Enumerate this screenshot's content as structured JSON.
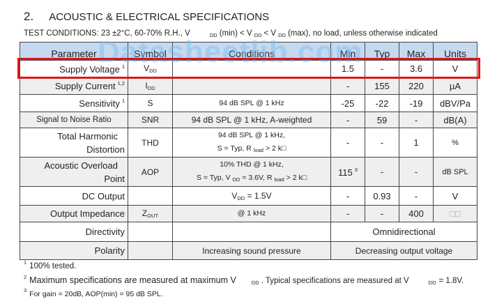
{
  "section": {
    "number": "2.",
    "title": "ACOUSTIC & ELECTRICAL SPECIFICATIONS"
  },
  "test_conditions": {
    "prefix": "TEST CONDITIONS: 23 ±2°C, 60-70% R.H., V",
    "p1": "(min) < V",
    "p2": "< V",
    "p3": "(max), no load, unless otherwise indicated",
    "sub": "DD"
  },
  "watermark": "Datasheetlib.com",
  "header": [
    "Parameter",
    "Symbol",
    "Conditions",
    "Min",
    "Typ",
    "Max",
    "Units"
  ],
  "rows": [
    {
      "parameter": "Supply Voltage",
      "note": "1",
      "symbol": "V",
      "symbol_sub": "DD",
      "conditions": "",
      "min": "1.5",
      "typ": "-",
      "max": "3.6",
      "units": "V"
    },
    {
      "parameter": "Supply Current",
      "note": "1,2",
      "symbol": "I",
      "symbol_sub": "DD",
      "conditions": "",
      "min": "-",
      "typ": "155",
      "max": "220",
      "units": "µA"
    },
    {
      "parameter": "Sensitivity",
      "note": "1",
      "symbol": "S",
      "conditions": "94 dB SPL @ 1 kHz",
      "min": "-25",
      "typ": "-22",
      "max": "-19",
      "units": "dBV/Pa"
    },
    {
      "parameter": "Signal to Noise Ratio",
      "symbol": "SNR",
      "conditions": "94 dB SPL @ 1 kHz, A-weighted",
      "min": "-",
      "typ": "59",
      "max": "-",
      "units": "dB(A)"
    },
    {
      "parameter_l1": "Total Harmonic",
      "parameter_l2": "Distortion",
      "symbol": "THD",
      "cond_l1": "94 dB SPL @ 1 kHz,",
      "cond_l2a": "S = Typ, R",
      "cond_l2sub": "load",
      "cond_l2b": "> 2 k□",
      "min": "-",
      "typ": "-",
      "max": "1",
      "units": "%"
    },
    {
      "parameter_l1": "Acoustic Overload",
      "parameter_l2": "Point",
      "symbol": "AOP",
      "cond_l1": "10% THD @ 1 kHz,",
      "cond_l2a": "S = Typ, V",
      "cond_l2sub1": "DD",
      "cond_l2b": "= 3.6V, R",
      "cond_l2sub2": "load",
      "cond_l2c": "> 2 k□",
      "min": "115",
      "min_note": "3",
      "typ": "-",
      "max": "-",
      "units": "dB SPL"
    },
    {
      "parameter": "DC Output",
      "symbol": "",
      "cond_a": "V",
      "cond_sub": "DD",
      "cond_b": " = 1.5V",
      "min": "-",
      "typ": "0.93",
      "max": "-",
      "units": "V"
    },
    {
      "parameter": "Output Impedance",
      "symbol": "Z",
      "symbol_sub": "OUT",
      "conditions": "@ 1 kHz",
      "min": "-",
      "typ": "-",
      "max": "400",
      "units": "□□"
    },
    {
      "parameter": "Directivity",
      "symbol": "",
      "conditions": "",
      "value": "Omnidirectional"
    },
    {
      "parameter": "Polarity",
      "symbol": "",
      "conditions": "Increasing sound pressure",
      "value": "Decreasing output voltage"
    }
  ],
  "footnotes": [
    {
      "mark": "1",
      "text": "100% tested."
    },
    {
      "mark": "2",
      "text_a": "Maximum specifications are measured at maximum V",
      "sub": "DD",
      "text_b": ". Typical specifications are measured at V",
      "text_c": "= 1.8V."
    },
    {
      "mark": "3",
      "text": "For gain = 20dB, AOP(min) = 95 dB SPL."
    }
  ],
  "highlight_color": "#e0161b",
  "header_bg": "#c6d9f0"
}
